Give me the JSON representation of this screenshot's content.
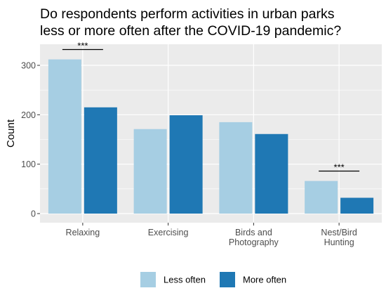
{
  "chart_data": {
    "type": "bar",
    "title_lines": [
      "Do respondents perform activities in urban parks",
      "less or more often after the COVID-19 pandemic?"
    ],
    "ylabel": "Count",
    "xlabel": "",
    "ylim": [
      0,
      330
    ],
    "yticks": [
      0,
      100,
      200,
      300
    ],
    "categories": [
      [
        "Relaxing"
      ],
      [
        "Exercising"
      ],
      [
        "Birds and",
        "Photography"
      ],
      [
        "Nest/Bird",
        "Hunting"
      ]
    ],
    "series": [
      {
        "name": "Less often",
        "color": "#a6cee3",
        "values": [
          312,
          171,
          185,
          66
        ]
      },
      {
        "name": "More often",
        "color": "#1f78b4",
        "values": [
          215,
          199,
          161,
          32
        ]
      }
    ],
    "annotations": [
      {
        "category_index": 0,
        "text": "***",
        "y": 332
      },
      {
        "category_index": 3,
        "text": "***",
        "y": 86
      }
    ],
    "grid": true,
    "panel_background": "#ebebeb",
    "legend_position": "bottom"
  }
}
